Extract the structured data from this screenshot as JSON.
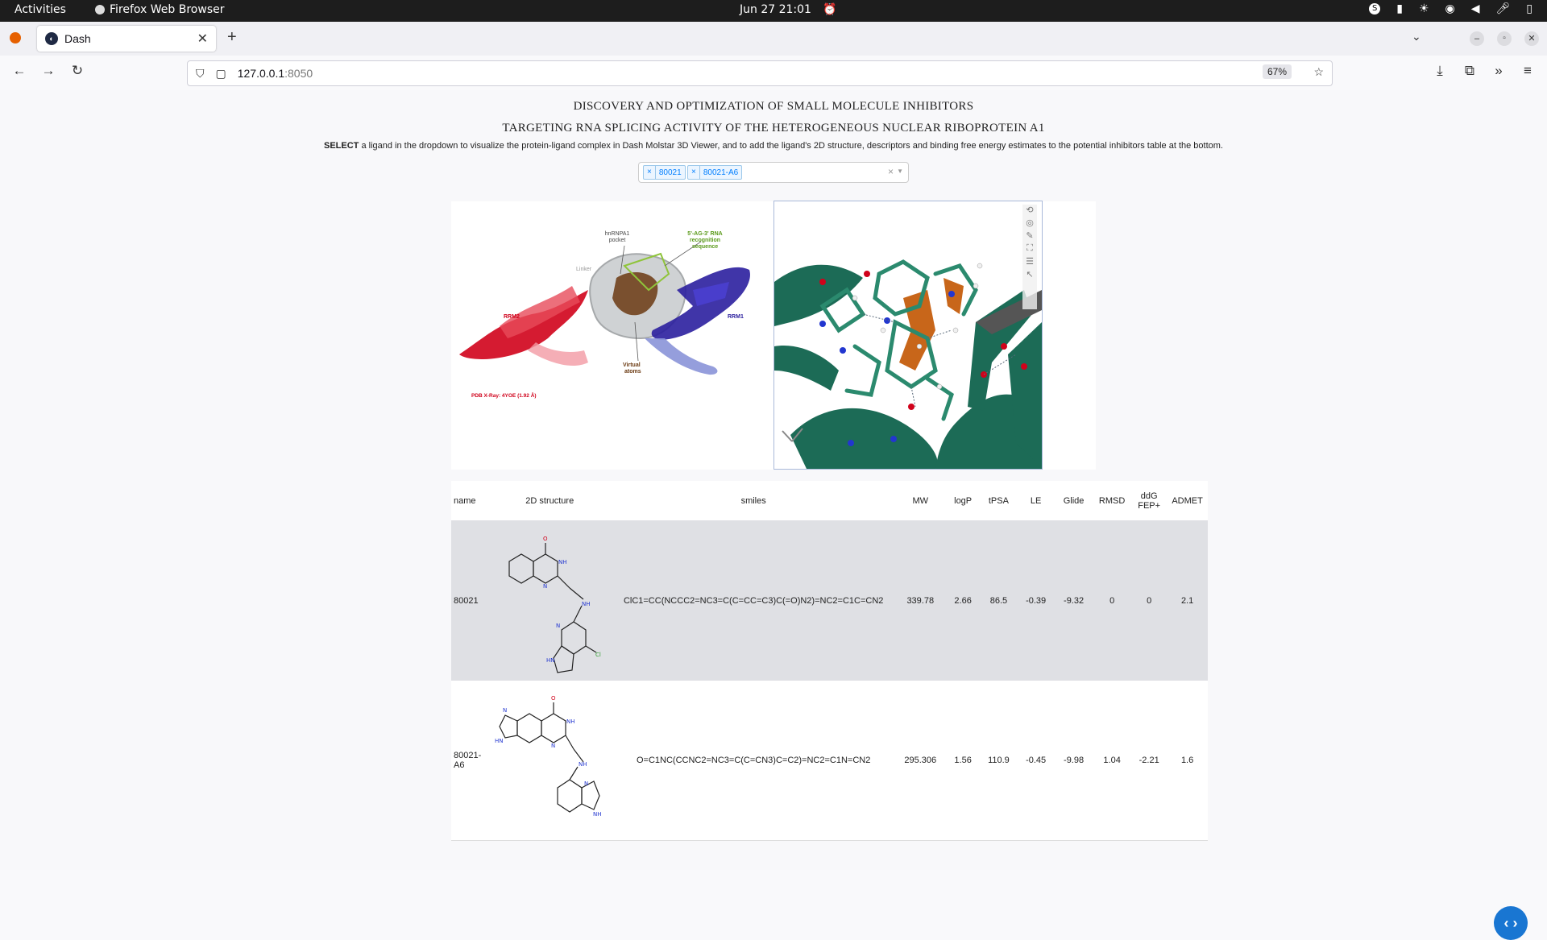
{
  "system": {
    "activities": "Activities",
    "app_name": "Firefox Web Browser",
    "clock": "Jun 27  21:01"
  },
  "browser": {
    "tab_title": "Dash",
    "url_host": "127.0.0.1",
    "url_port": ":8050",
    "zoom": "67%"
  },
  "page": {
    "title_line1": "DISCOVERY AND OPTIMIZATION OF SMALL MOLECULE INHIBITORS",
    "title_line2": "TARGETING RNA SPLICING ACTIVITY OF THE HETEROGENEOUS NUCLEAR RIBOPROTEIN A1",
    "instruction_bold": "SELECT",
    "instruction_rest": " a ligand in the dropdown to visualize the protein-ligand complex in Dash Molstar 3D Viewer, and to add the ligand's 2D structure, descriptors and binding free energy estimates to the potential inhibitors table at the bottom.",
    "dropdown": {
      "selected": [
        "80021",
        "80021-A6"
      ]
    }
  },
  "figure": {
    "label_pocket": "hnRNPA1\npocket",
    "label_rna": "5'-AG-3' RNA\nrecognition\nsequence",
    "label_linker": "Linker",
    "label_rrm2": "RRM2",
    "label_rrm1": "RRM1",
    "label_virtual": "Virtual\natoms",
    "label_pdb": "PDB X-Ray: 4YOE (1.92 Å)"
  },
  "table": {
    "headers": [
      "name",
      "2D structure",
      "smiles",
      "MW",
      "logP",
      "tPSA",
      "LE",
      "Glide",
      "RMSD",
      "ddG FEP+",
      "ADMET"
    ],
    "rows": [
      {
        "name": "80021",
        "smiles": "ClC1=CC(NCCC2=NC3=C(C=CC=C3)C(=O)N2)=NC2=C1C=CN2",
        "mw": "339.78",
        "logp": "2.66",
        "tpsa": "86.5",
        "le": "-0.39",
        "glide": "-9.32",
        "rmsd": "0",
        "ddg": "0",
        "admet": "2.1"
      },
      {
        "name": "80021-A6",
        "smiles": "O=C1NC(CCNC2=NC3=C(C=CN3)C=C2)=NC2=C1N=CN2",
        "mw": "295.306",
        "logp": "1.56",
        "tpsa": "110.9",
        "le": "-0.45",
        "glide": "-9.98",
        "rmsd": "1.04",
        "ddg": "-2.21",
        "admet": "1.6"
      }
    ]
  },
  "mol_labels": {
    "o": "O",
    "nh": "NH",
    "n": "N",
    "hn": "HN",
    "cl": "Cl"
  },
  "colors": {
    "accent": "#1976d2",
    "protein_green": "#1c6b56",
    "ligand_orange": "#c8661a",
    "rrm2_red": "#d0021b",
    "rrm1_blue": "#2b1f9e"
  }
}
